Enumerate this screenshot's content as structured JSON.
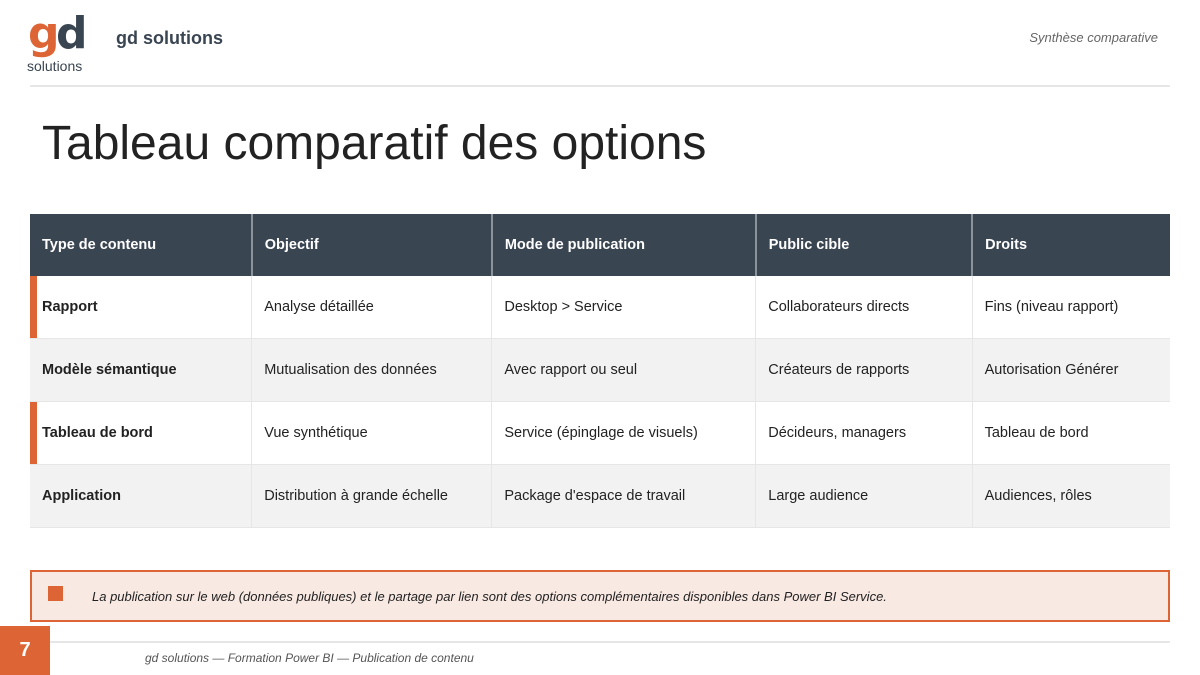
{
  "header": {
    "logo_text": "gd solutions",
    "brand": "gd solutions",
    "section": "Synthèse comparative"
  },
  "title": "Tableau comparatif des options",
  "table": {
    "headers": [
      "Type de contenu",
      "Objectif",
      "Mode de publication",
      "Public cible",
      "Droits"
    ],
    "rows": [
      {
        "cells": [
          "Rapport",
          "Analyse détaillée",
          "Desktop > Service",
          "Collaborateurs directs",
          "Fins (niveau rapport)"
        ],
        "accent": true
      },
      {
        "cells": [
          "Modèle sémantique",
          "Mutualisation des données",
          "Avec rapport ou seul",
          "Créateurs de rapports",
          "Autorisation Générer"
        ],
        "accent": false
      },
      {
        "cells": [
          "Tableau de bord",
          "Vue synthétique",
          "Service (épinglage de visuels)",
          "Décideurs, managers",
          "Tableau de bord"
        ],
        "accent": true
      },
      {
        "cells": [
          "Application",
          "Distribution à grande échelle",
          "Package d'espace de travail",
          "Large audience",
          "Audiences, rôles"
        ],
        "accent": false
      }
    ]
  },
  "note": "La publication sur le web (données publiques) et le partage par lien sont des options complémentaires disponibles dans Power BI Service.",
  "footer": {
    "page_number": "7",
    "text": "gd solutions — Formation Power BI — Publication de contenu"
  },
  "colors": {
    "accent": "#dd6535",
    "header_bg": "#3a4552",
    "note_bg": "#f9e9e3"
  }
}
